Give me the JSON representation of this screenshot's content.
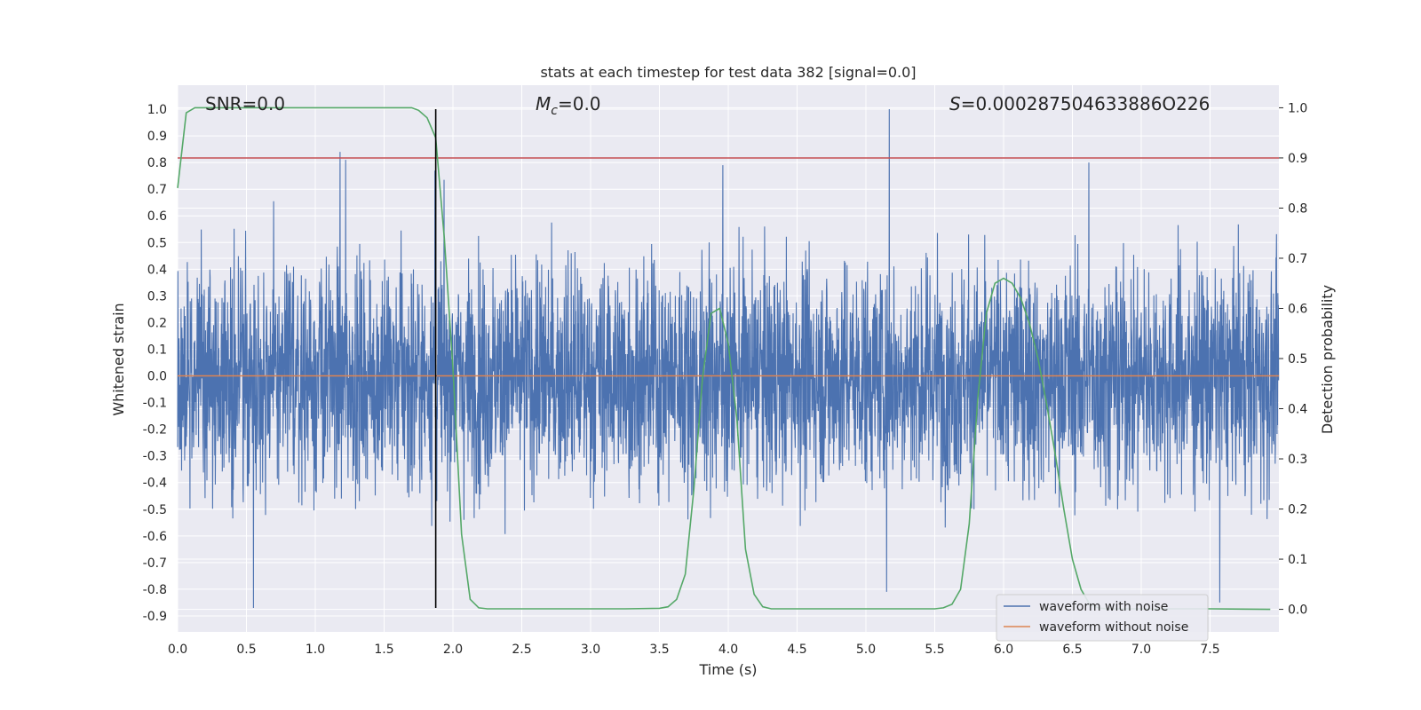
{
  "chart_data": {
    "type": "line",
    "title": "stats at each timestep for test data 382 [signal=0.0]",
    "xlabel": "Time (s)",
    "ylabel_left": "Whitened strain",
    "ylabel_right": "Detection probability",
    "xlim": [
      0.0,
      8.0
    ],
    "ylim_left": [
      -0.96,
      1.09
    ],
    "ylim_right": [
      -0.045,
      1.045
    ],
    "xticks": [
      "0.0",
      "0.5",
      "1.0",
      "1.5",
      "2.0",
      "2.5",
      "3.0",
      "3.5",
      "4.0",
      "4.5",
      "5.0",
      "5.5",
      "6.0",
      "6.5",
      "7.0",
      "7.5"
    ],
    "yticks_left": [
      "1.0",
      "0.9",
      "0.8",
      "0.7",
      "0.6",
      "0.5",
      "0.4",
      "0.3",
      "0.2",
      "0.1",
      "0.0",
      "-0.1",
      "-0.2",
      "-0.3",
      "-0.4",
      "-0.5",
      "-0.6",
      "-0.7",
      "-0.8",
      "-0.9"
    ],
    "yticks_right": [
      "1.0",
      "0.9",
      "0.8",
      "0.7",
      "0.6",
      "0.5",
      "0.4",
      "0.3",
      "0.2",
      "0.1",
      "0.0"
    ],
    "annotations": {
      "snr": "SNR=0.0",
      "mc_symbol": "M",
      "mc_sub": "c",
      "mc_value": "=0.0",
      "s_symbol": "S",
      "s_value": "=0.000287504633886O226"
    },
    "threshold_right": 0.9,
    "marker_time": 1.875,
    "series": [
      {
        "name": "waveform with noise",
        "color": "#4c72b0",
        "axis": "left",
        "description": "whitened noisy strain, approx. range -0.87 to 1.0, 4096 Hz samples over 8 s",
        "noise_amplitude": 0.29,
        "peaks": [
          {
            "t": 0.55,
            "v": -0.87
          },
          {
            "t": 1.18,
            "v": 0.84
          },
          {
            "t": 1.22,
            "v": 0.81
          },
          {
            "t": 1.87,
            "v": 0.77
          },
          {
            "t": 3.96,
            "v": 0.79
          },
          {
            "t": 5.17,
            "v": 1.0
          },
          {
            "t": 5.15,
            "v": -0.81
          },
          {
            "t": 6.62,
            "v": 0.8
          },
          {
            "t": 7.57,
            "v": -0.85
          }
        ]
      },
      {
        "name": "waveform without noise",
        "color": "#dd8452",
        "axis": "left",
        "x": [
          0.0,
          8.0
        ],
        "y": [
          0.0,
          0.0
        ]
      },
      {
        "name": "detection probability",
        "color": "#55a868",
        "axis": "right",
        "x": [
          0.0,
          0.0625,
          0.125,
          0.25,
          0.5,
          1.0,
          1.5,
          1.7,
          1.75,
          1.8125,
          1.875,
          1.9375,
          2.0,
          2.0625,
          2.125,
          2.1875,
          2.25,
          2.5,
          3.0,
          3.25,
          3.5,
          3.5625,
          3.625,
          3.6875,
          3.75,
          3.8125,
          3.875,
          3.9375,
          4.0,
          4.0625,
          4.125,
          4.1875,
          4.25,
          4.3125,
          4.5,
          5.0,
          5.5,
          5.5625,
          5.625,
          5.6875,
          5.75,
          5.8125,
          5.875,
          5.9375,
          6.0,
          6.0625,
          6.125,
          6.1875,
          6.25,
          6.3125,
          6.375,
          6.4375,
          6.5,
          6.5625,
          6.625,
          6.6875,
          6.75,
          6.8125,
          7.0,
          7.5,
          7.9375
        ],
        "y": [
          0.84,
          0.99,
          1.0,
          1.0,
          1.0,
          1.0,
          1.0,
          1.0,
          0.995,
          0.98,
          0.94,
          0.74,
          0.48,
          0.15,
          0.02,
          0.003,
          0.001,
          0.001,
          0.001,
          0.001,
          0.002,
          0.005,
          0.02,
          0.07,
          0.24,
          0.46,
          0.59,
          0.6,
          0.53,
          0.38,
          0.12,
          0.03,
          0.005,
          0.001,
          0.001,
          0.001,
          0.001,
          0.003,
          0.01,
          0.04,
          0.17,
          0.42,
          0.59,
          0.65,
          0.66,
          0.65,
          0.62,
          0.57,
          0.5,
          0.41,
          0.31,
          0.2,
          0.1,
          0.04,
          0.01,
          0.003,
          0.001,
          0.001,
          0.001,
          0.001,
          0.0
        ]
      }
    ],
    "legend": {
      "placement": "lower-right",
      "entries": [
        {
          "label": "waveform with noise",
          "color": "#4c72b0"
        },
        {
          "label": "waveform without noise",
          "color": "#dd8452"
        }
      ]
    },
    "colors": {
      "plot_bg": "#eaeaf2",
      "grid": "#ffffff",
      "threshold": "#c44e52",
      "marker": "#000000",
      "text": "#262626"
    }
  }
}
